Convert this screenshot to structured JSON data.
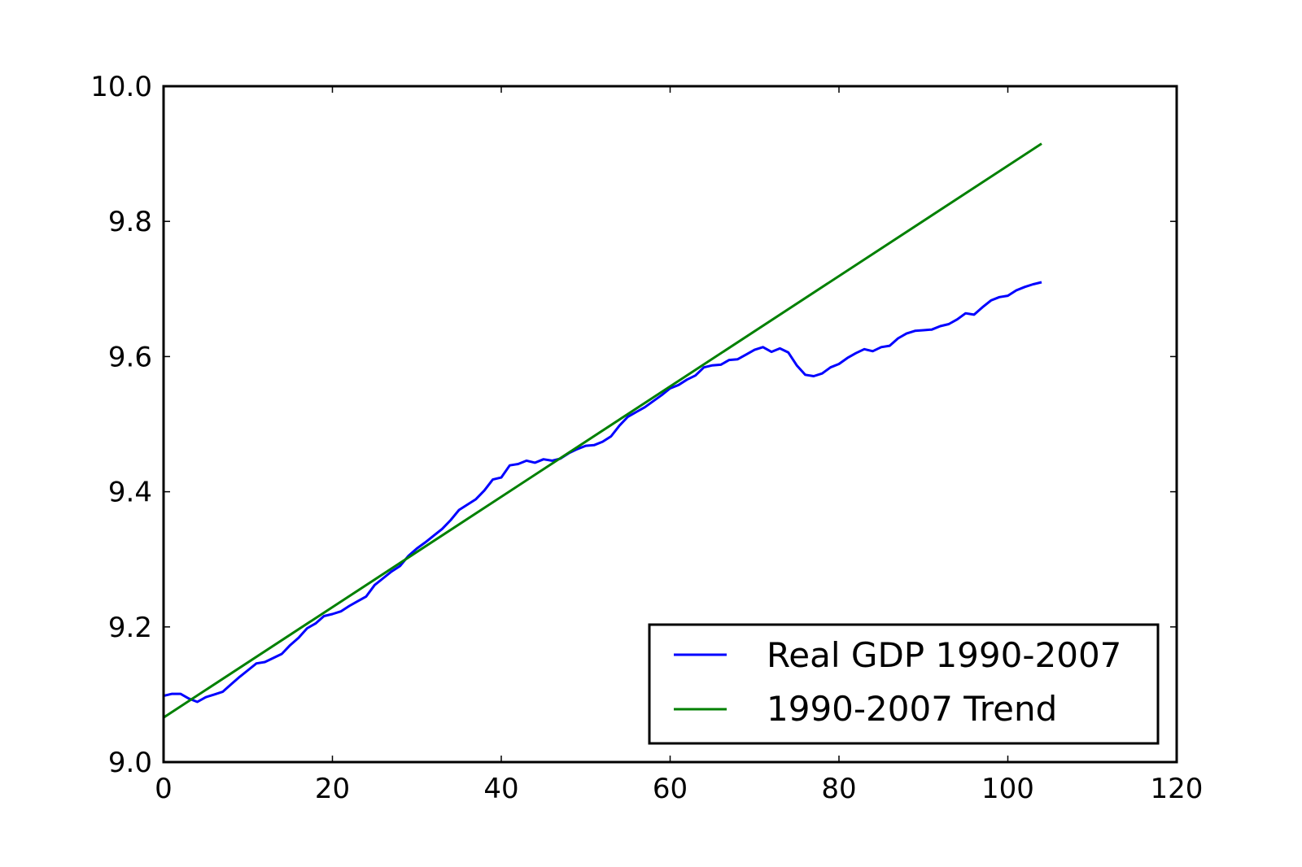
{
  "chart_data": {
    "type": "line",
    "title": "",
    "xlabel": "",
    "ylabel": "",
    "xlim": [
      0,
      120
    ],
    "ylim": [
      9.0,
      10.0
    ],
    "xticks": [
      "0",
      "20",
      "40",
      "60",
      "80",
      "100",
      "120"
    ],
    "yticks": [
      "9.0",
      "9.2",
      "9.4",
      "9.6",
      "9.8",
      "10.0"
    ],
    "grid": false,
    "legend_position": "lower-right",
    "series": [
      {
        "name": "Real GDP 1990-2007",
        "color": "#0000ff",
        "x": [
          0,
          1,
          2,
          3,
          4,
          5,
          6,
          7,
          8,
          9,
          10,
          11,
          12,
          13,
          14,
          15,
          16,
          17,
          18,
          19,
          20,
          21,
          22,
          23,
          24,
          25,
          26,
          27,
          28,
          29,
          30,
          31,
          32,
          33,
          34,
          35,
          36,
          37,
          38,
          39,
          40,
          41,
          42,
          43,
          44,
          45,
          46,
          47,
          48,
          49,
          50,
          51,
          52,
          53,
          54,
          55,
          56,
          57,
          58,
          59,
          60,
          61,
          62,
          63,
          64,
          65,
          66,
          67,
          68,
          69,
          70,
          71,
          72,
          73,
          74,
          75,
          76,
          77,
          78,
          79,
          80,
          81,
          82,
          83,
          84,
          85,
          86,
          87,
          88,
          89,
          90,
          91,
          92,
          93,
          94,
          95,
          96,
          97,
          98,
          99,
          100,
          101,
          102,
          103,
          104
        ],
        "values": [
          9.098,
          9.101,
          9.101,
          9.094,
          9.089,
          9.096,
          9.1,
          9.104,
          9.115,
          9.126,
          9.136,
          9.146,
          9.148,
          9.154,
          9.16,
          9.173,
          9.184,
          9.198,
          9.205,
          9.216,
          9.219,
          9.223,
          9.231,
          9.238,
          9.245,
          9.262,
          9.272,
          9.282,
          9.29,
          9.305,
          9.316,
          9.325,
          9.335,
          9.345,
          9.358,
          9.373,
          9.381,
          9.389,
          9.402,
          9.418,
          9.421,
          9.439,
          9.441,
          9.446,
          9.443,
          9.448,
          9.446,
          9.449,
          9.457,
          9.463,
          9.468,
          9.469,
          9.474,
          9.482,
          9.498,
          9.511,
          9.518,
          9.525,
          9.534,
          9.543,
          9.553,
          9.558,
          9.566,
          9.572,
          9.584,
          9.587,
          9.588,
          9.595,
          9.596,
          9.603,
          9.61,
          9.614,
          9.607,
          9.612,
          9.606,
          9.587,
          9.573,
          9.571,
          9.575,
          9.584,
          9.589,
          9.598,
          9.605,
          9.611,
          9.608,
          9.614,
          9.616,
          9.627,
          9.634,
          9.638,
          9.639,
          9.64,
          9.645,
          9.648,
          9.655,
          9.664,
          9.662,
          9.673,
          9.683,
          9.688,
          9.69,
          9.698,
          9.703,
          9.707,
          9.71
        ]
      },
      {
        "name": "1990-2007 Trend",
        "color": "#008000",
        "x": [
          0,
          104
        ],
        "values": [
          9.066,
          9.915
        ]
      }
    ]
  }
}
